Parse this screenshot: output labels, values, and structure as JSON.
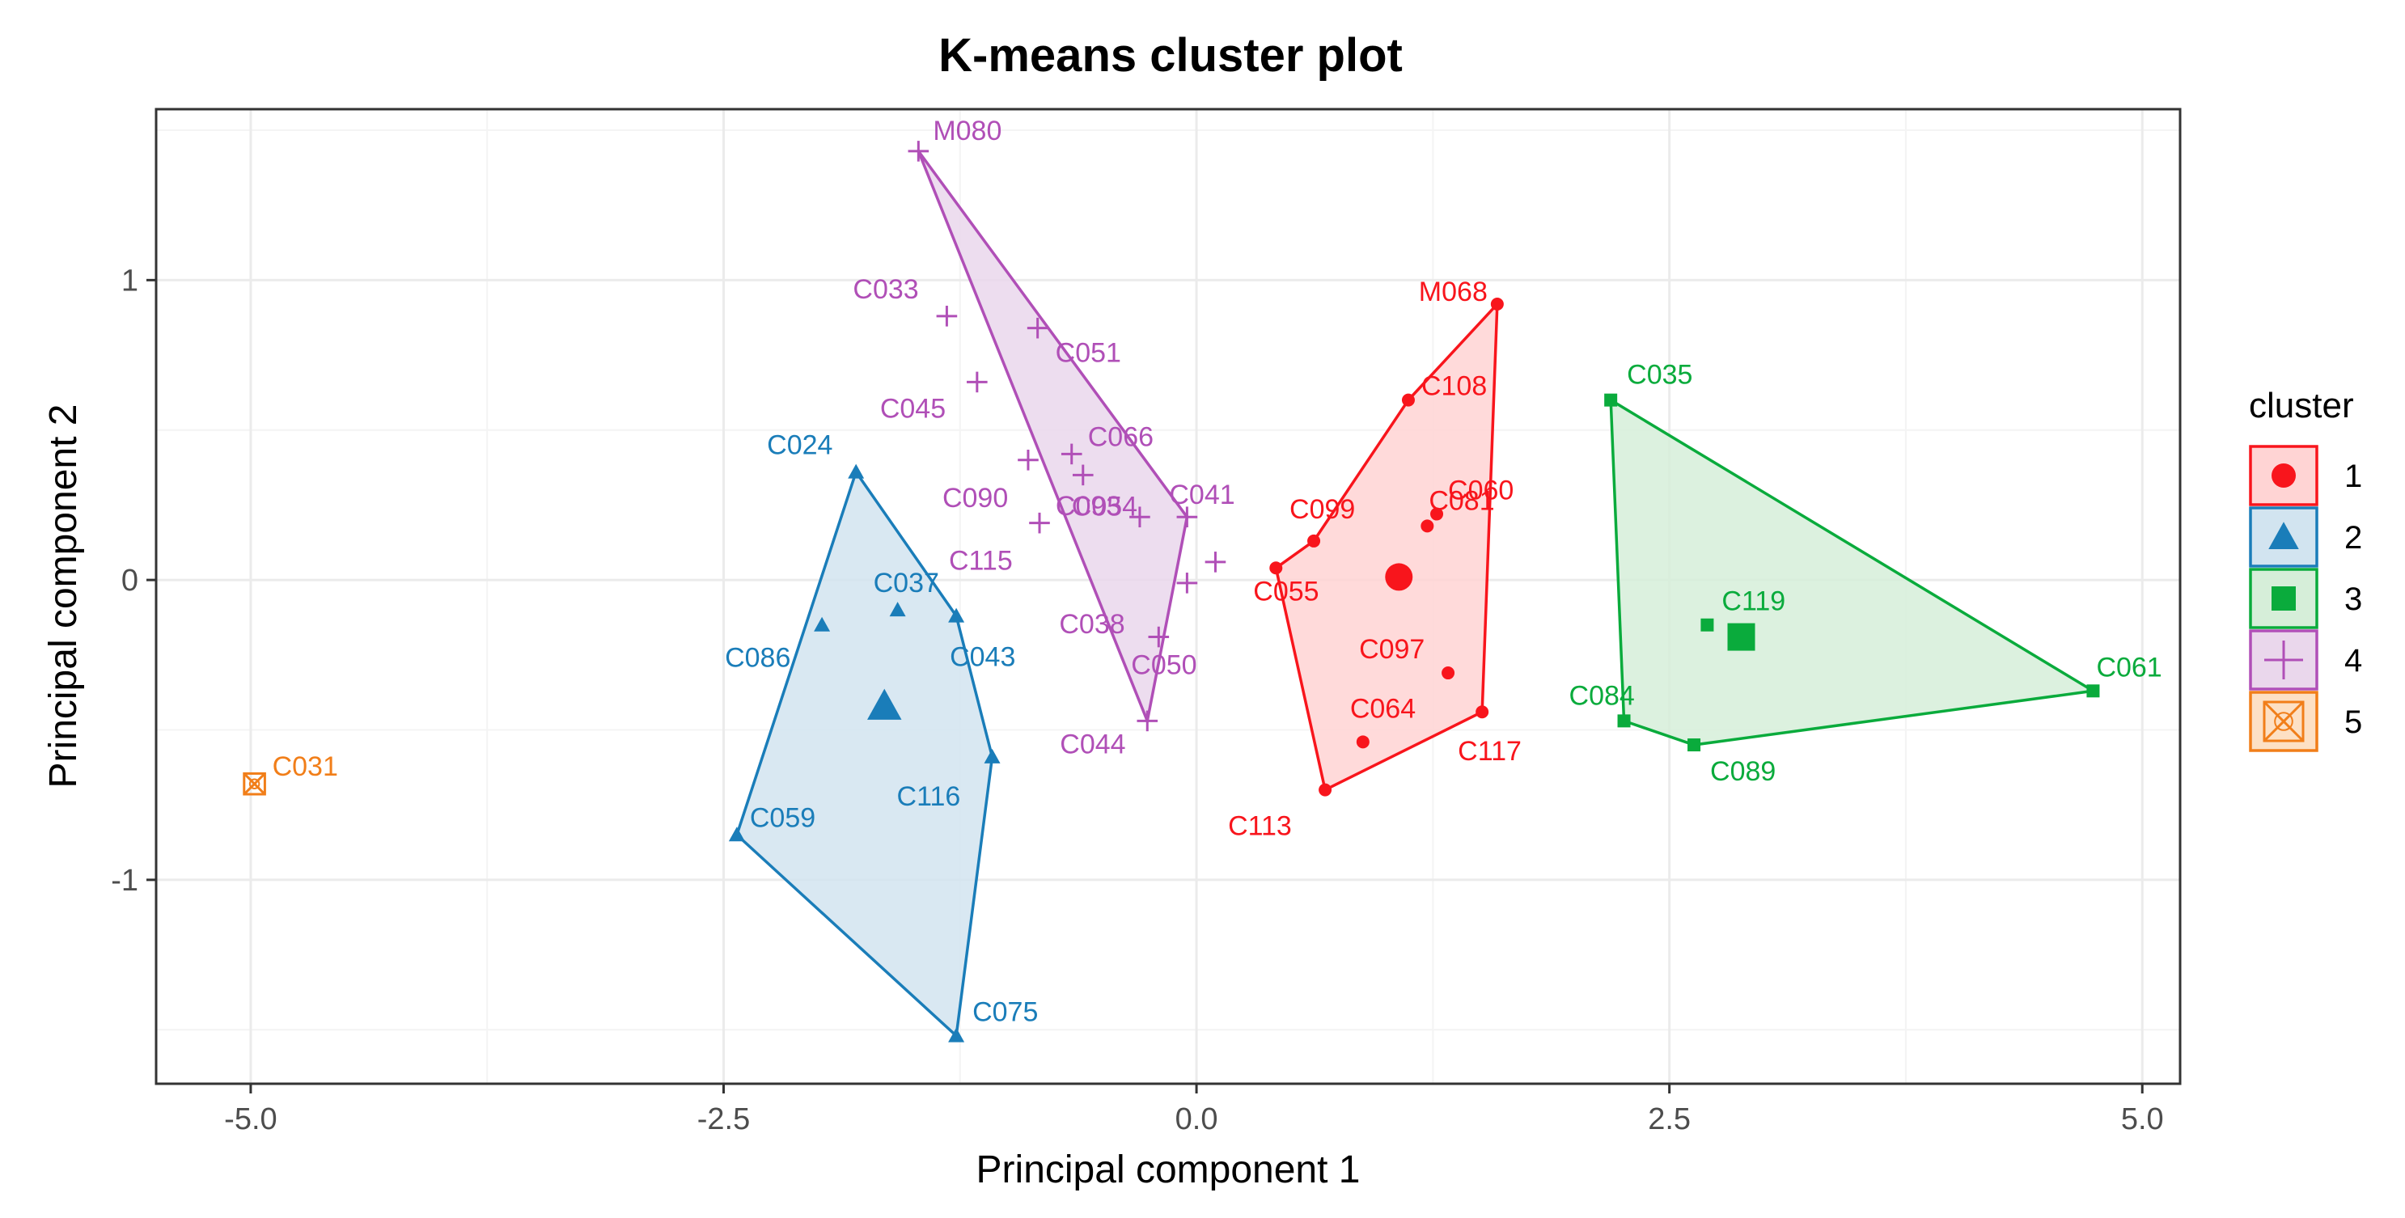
{
  "chart_data": {
    "type": "scatter",
    "title": "K-means cluster plot",
    "xlabel": "Principal component 1",
    "ylabel": "Principal component 2",
    "xlim": [
      -5.5,
      5.2
    ],
    "ylim": [
      -1.68,
      1.57
    ],
    "x_ticks": [
      -5.0,
      -2.5,
      0.0,
      2.5,
      5.0
    ],
    "x_tick_labels": [
      "-5.0",
      "-2.5",
      "0.0",
      "2.5",
      "5.0"
    ],
    "y_ticks": [
      -1,
      0,
      1
    ],
    "y_tick_labels": [
      "-1",
      "0",
      "1"
    ],
    "grid": true,
    "legend": {
      "title": "cluster",
      "position": "right"
    },
    "clusters": [
      {
        "id": "1",
        "color": "#f8151c",
        "fill": "#ffd4d4",
        "shape": "circle",
        "center": [
          1.07,
          0.01
        ],
        "hull": [
          "C055",
          "C099",
          "C108",
          "M068",
          "C117",
          "C113"
        ],
        "points": [
          {
            "label": "M068",
            "x": 1.59,
            "y": 0.92
          },
          {
            "label": "C108",
            "x": 1.12,
            "y": 0.6
          },
          {
            "label": "C060",
            "x": 1.27,
            "y": 0.22
          },
          {
            "label": "C099",
            "x": 0.62,
            "y": 0.13
          },
          {
            "label": "C081",
            "x": 1.22,
            "y": 0.18
          },
          {
            "label": "C055",
            "x": 0.42,
            "y": 0.04
          },
          {
            "label": "C097",
            "x": 1.33,
            "y": -0.31
          },
          {
            "label": "C064",
            "x": 0.88,
            "y": -0.54
          },
          {
            "label": "C117",
            "x": 1.51,
            "y": -0.44
          },
          {
            "label": "C113",
            "x": 0.68,
            "y": -0.7
          }
        ]
      },
      {
        "id": "2",
        "color": "#1a7db9",
        "fill": "#d2e4f0",
        "shape": "triangle",
        "center": [
          -1.65,
          -0.42
        ],
        "hull": [
          "C024",
          "C043",
          "C116",
          "C075",
          "C059"
        ],
        "points": [
          {
            "label": "C024",
            "x": -1.8,
            "y": 0.36
          },
          {
            "label": "C037",
            "x": -1.58,
            "y": -0.1
          },
          {
            "label": "C086",
            "x": -1.98,
            "y": -0.15
          },
          {
            "label": "C043",
            "x": -1.27,
            "y": -0.12
          },
          {
            "label": "C116",
            "x": -1.08,
            "y": -0.59
          },
          {
            "label": "C059",
            "x": -2.43,
            "y": -0.85
          },
          {
            "label": "C075",
            "x": -1.27,
            "y": -1.52
          }
        ]
      },
      {
        "id": "3",
        "color": "#0aab3c",
        "fill": "#d6eed9",
        "shape": "square",
        "center": [
          2.88,
          -0.19
        ],
        "hull": [
          "C035",
          "C061",
          "C089",
          "C084"
        ],
        "points": [
          {
            "label": "C035",
            "x": 2.19,
            "y": 0.6
          },
          {
            "label": "C119",
            "x": 2.7,
            "y": -0.15
          },
          {
            "label": "C084",
            "x": 2.26,
            "y": -0.47
          },
          {
            "label": "C089",
            "x": 2.63,
            "y": -0.55
          },
          {
            "label": "C061",
            "x": 4.74,
            "y": -0.37
          }
        ]
      },
      {
        "id": "4",
        "color": "#b04fb7",
        "fill": "#ead7ec",
        "shape": "plus",
        "center": null,
        "hull": [
          "M080",
          "C041",
          "C044"
        ],
        "points": [
          {
            "label": "M080",
            "x": -1.47,
            "y": 1.43
          },
          {
            "label": "C033",
            "x": -1.32,
            "y": 0.88
          },
          {
            "label": "C051",
            "x": -0.84,
            "y": 0.84
          },
          {
            "label": "C045",
            "x": -1.16,
            "y": 0.66
          },
          {
            "label": "C066",
            "x": -0.66,
            "y": 0.42
          },
          {
            "label": "C090",
            "x": -0.89,
            "y": 0.4
          },
          {
            "label": "C054",
            "x": -0.6,
            "y": 0.35
          },
          {
            "label": "C041",
            "x": -0.05,
            "y": 0.21
          },
          {
            "label": "C115",
            "x": -0.83,
            "y": 0.19
          },
          {
            "label": "C093",
            "x": -0.3,
            "y": 0.21
          },
          {
            "label": "C038",
            "x": -0.05,
            "y": -0.01
          },
          {
            "label": "C050",
            "x": -0.2,
            "y": -0.19
          },
          {
            "label": "C044",
            "x": -0.26,
            "y": -0.47
          },
          {
            "label": "",
            "x": 0.1,
            "y": 0.06
          }
        ]
      },
      {
        "id": "5",
        "color": "#f17e19",
        "fill": "#fde0c4",
        "shape": "boxx",
        "center": null,
        "hull": [],
        "points": [
          {
            "label": "C031",
            "x": -4.98,
            "y": -0.68
          }
        ]
      }
    ]
  }
}
